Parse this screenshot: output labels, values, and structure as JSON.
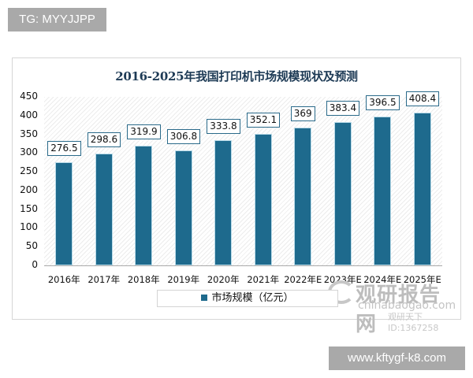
{
  "tags": {
    "top": "TG: MYYJJPP",
    "bottom": "www.kftygf-k8.com"
  },
  "chart": {
    "title": "2016-2025年我国打印机市场规模现状及预测",
    "legend": "市场规模（亿元）",
    "y_ticks": [
      "450",
      "400",
      "350",
      "300",
      "250",
      "200",
      "150",
      "100",
      "50",
      "0"
    ],
    "watermark": {
      "main": "观研报告网",
      "sub": "chinabaogao.com",
      "id": "观研天下 ID:1367258"
    }
  },
  "colors": {
    "bar": "#1e6a8d",
    "label_border": "#2a6a8a",
    "title": "#1d3a55"
  },
  "chart_data": {
    "type": "bar",
    "title": "2016-2025年我国打印机市场规模现状及预测",
    "categories": [
      "2016年",
      "2017年",
      "2018年",
      "2019年",
      "2020年",
      "2021年",
      "2022年E",
      "2023年E",
      "2024年E",
      "2025年E"
    ],
    "series": [
      {
        "name": "市场规模（亿元）",
        "values": [
          276.5,
          298.6,
          319.9,
          306.8,
          333.8,
          352.1,
          369,
          383.4,
          396.5,
          408.4
        ]
      }
    ],
    "value_labels": [
      "276.5",
      "298.6",
      "319.9",
      "306.8",
      "333.8",
      "352.1",
      "369",
      "383.4",
      "396.5",
      "408.4"
    ],
    "xlabel": "",
    "ylabel": "",
    "ylim": [
      0,
      450
    ],
    "y_tick_step": 50,
    "grid": false,
    "legend_position": "bottom"
  }
}
